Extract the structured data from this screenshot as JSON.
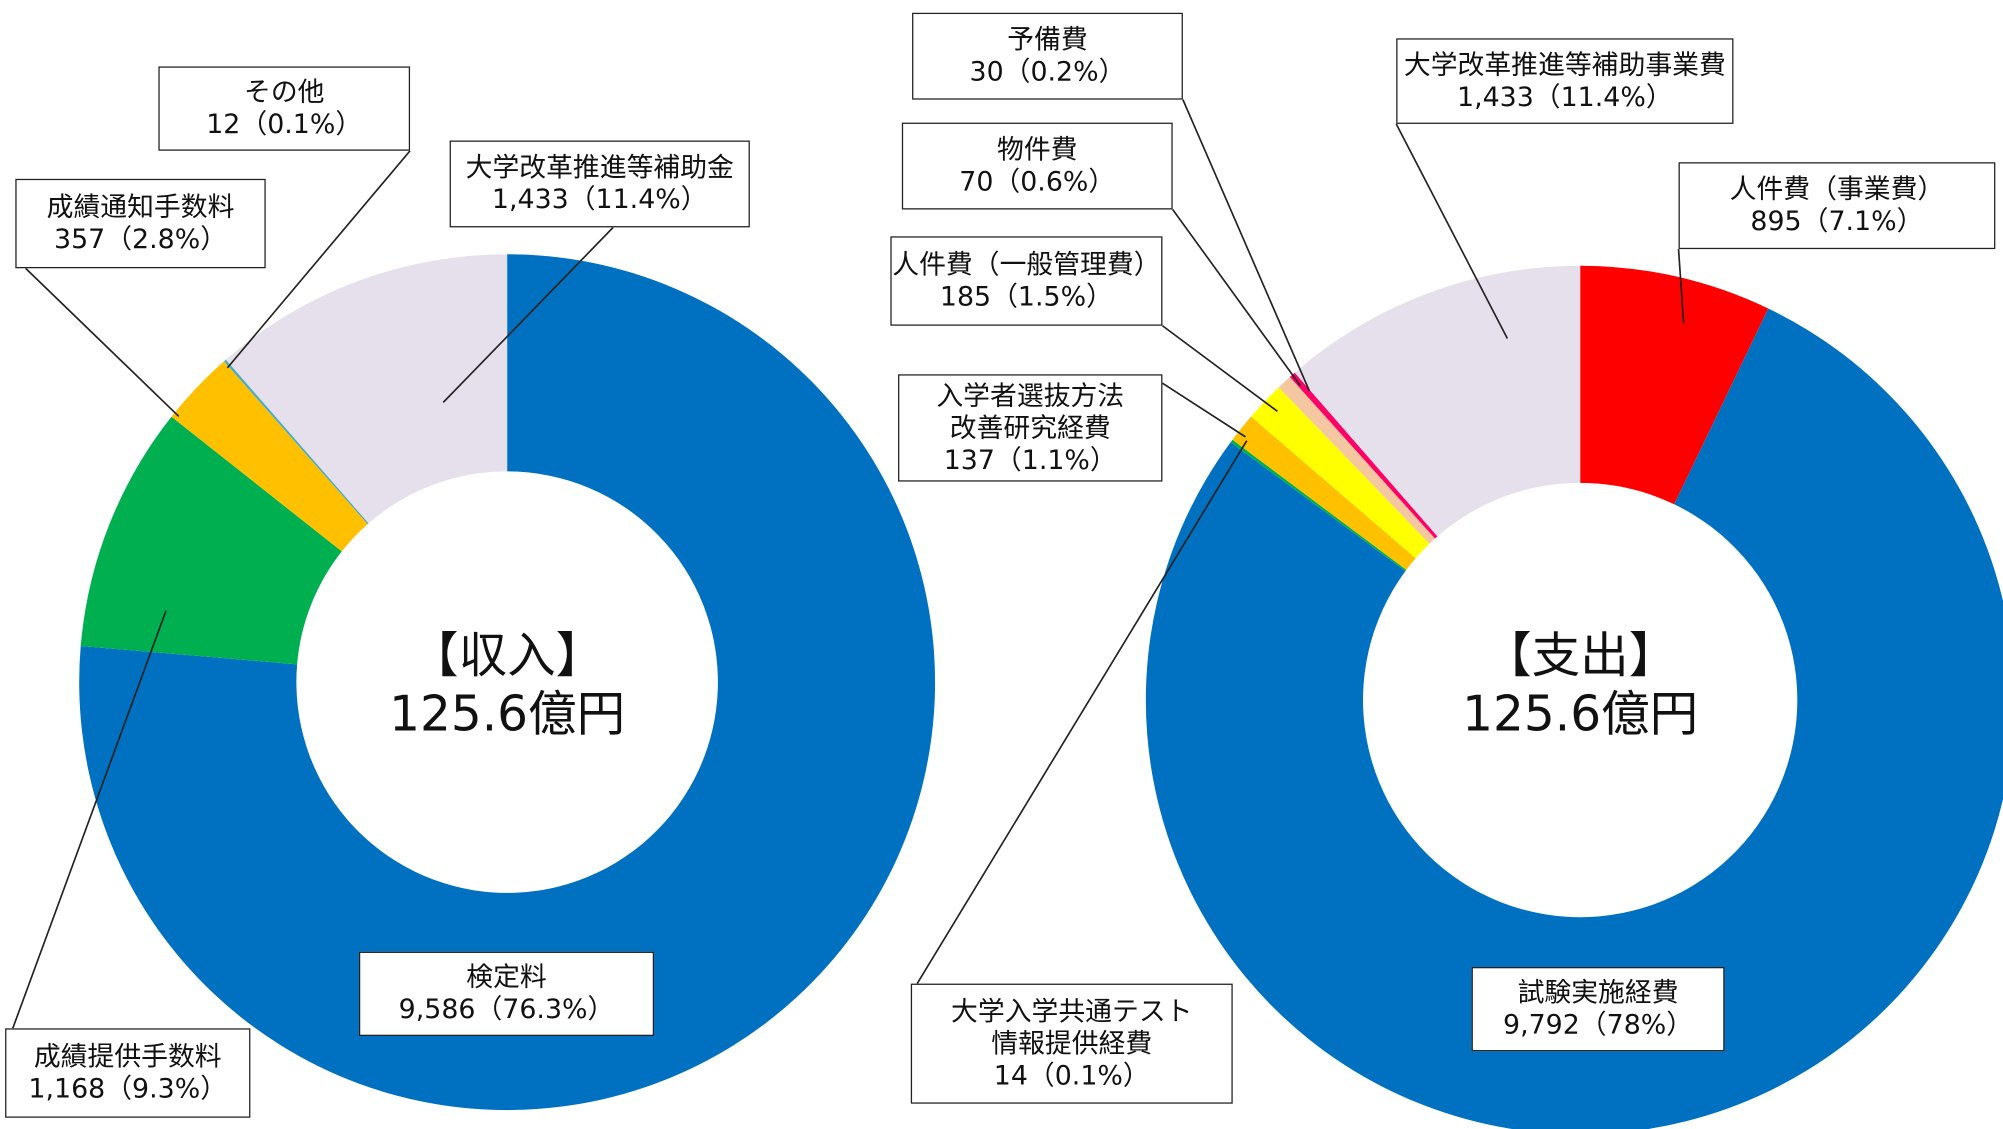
{
  "chart_data": [
    {
      "type": "pie",
      "title": "【収入】",
      "subtitle": "125.6億円",
      "categories": [
        "検定料",
        "成績提供手数料",
        "成績通知手数料",
        "その他",
        "大学改革推進等補助金"
      ],
      "values": [
        9586,
        1168,
        357,
        12,
        1433
      ],
      "value_labels": [
        "9,586（76.3%）",
        "1,168（9.3%）",
        "357（2.8%）",
        "12（0.1%）",
        "1,433（11.4%）"
      ],
      "colors": [
        "#0070c0",
        "#00b050",
        "#ffc000",
        "#4bacc6",
        "#e6e0ec"
      ]
    },
    {
      "type": "pie",
      "title": "【支出】",
      "subtitle": "125.6億円",
      "categories": [
        "人件費（事業費）",
        "試験実施経費",
        "大学入学共通テスト\n情報提供経費",
        "入学者選抜方法\n改善研究経費",
        "人件費（一般管理費）",
        "物件費",
        "予備費",
        "大学改革推進等補助事業費"
      ],
      "values": [
        895,
        9792,
        14,
        137,
        185,
        70,
        30,
        1433
      ],
      "value_labels": [
        "895（7.1%）",
        "9,792（78%）",
        "14（0.1%）",
        "137（1.1%）",
        "185（1.5%）",
        "70（0.6%）",
        "30（0.2%）",
        "1,433（11.4%）"
      ],
      "colors": [
        "#ff0000",
        "#0070c0",
        "#00b050",
        "#ffc000",
        "#ffff00",
        "#f4c7a1",
        "#ff0066",
        "#e6e0ec"
      ]
    }
  ]
}
